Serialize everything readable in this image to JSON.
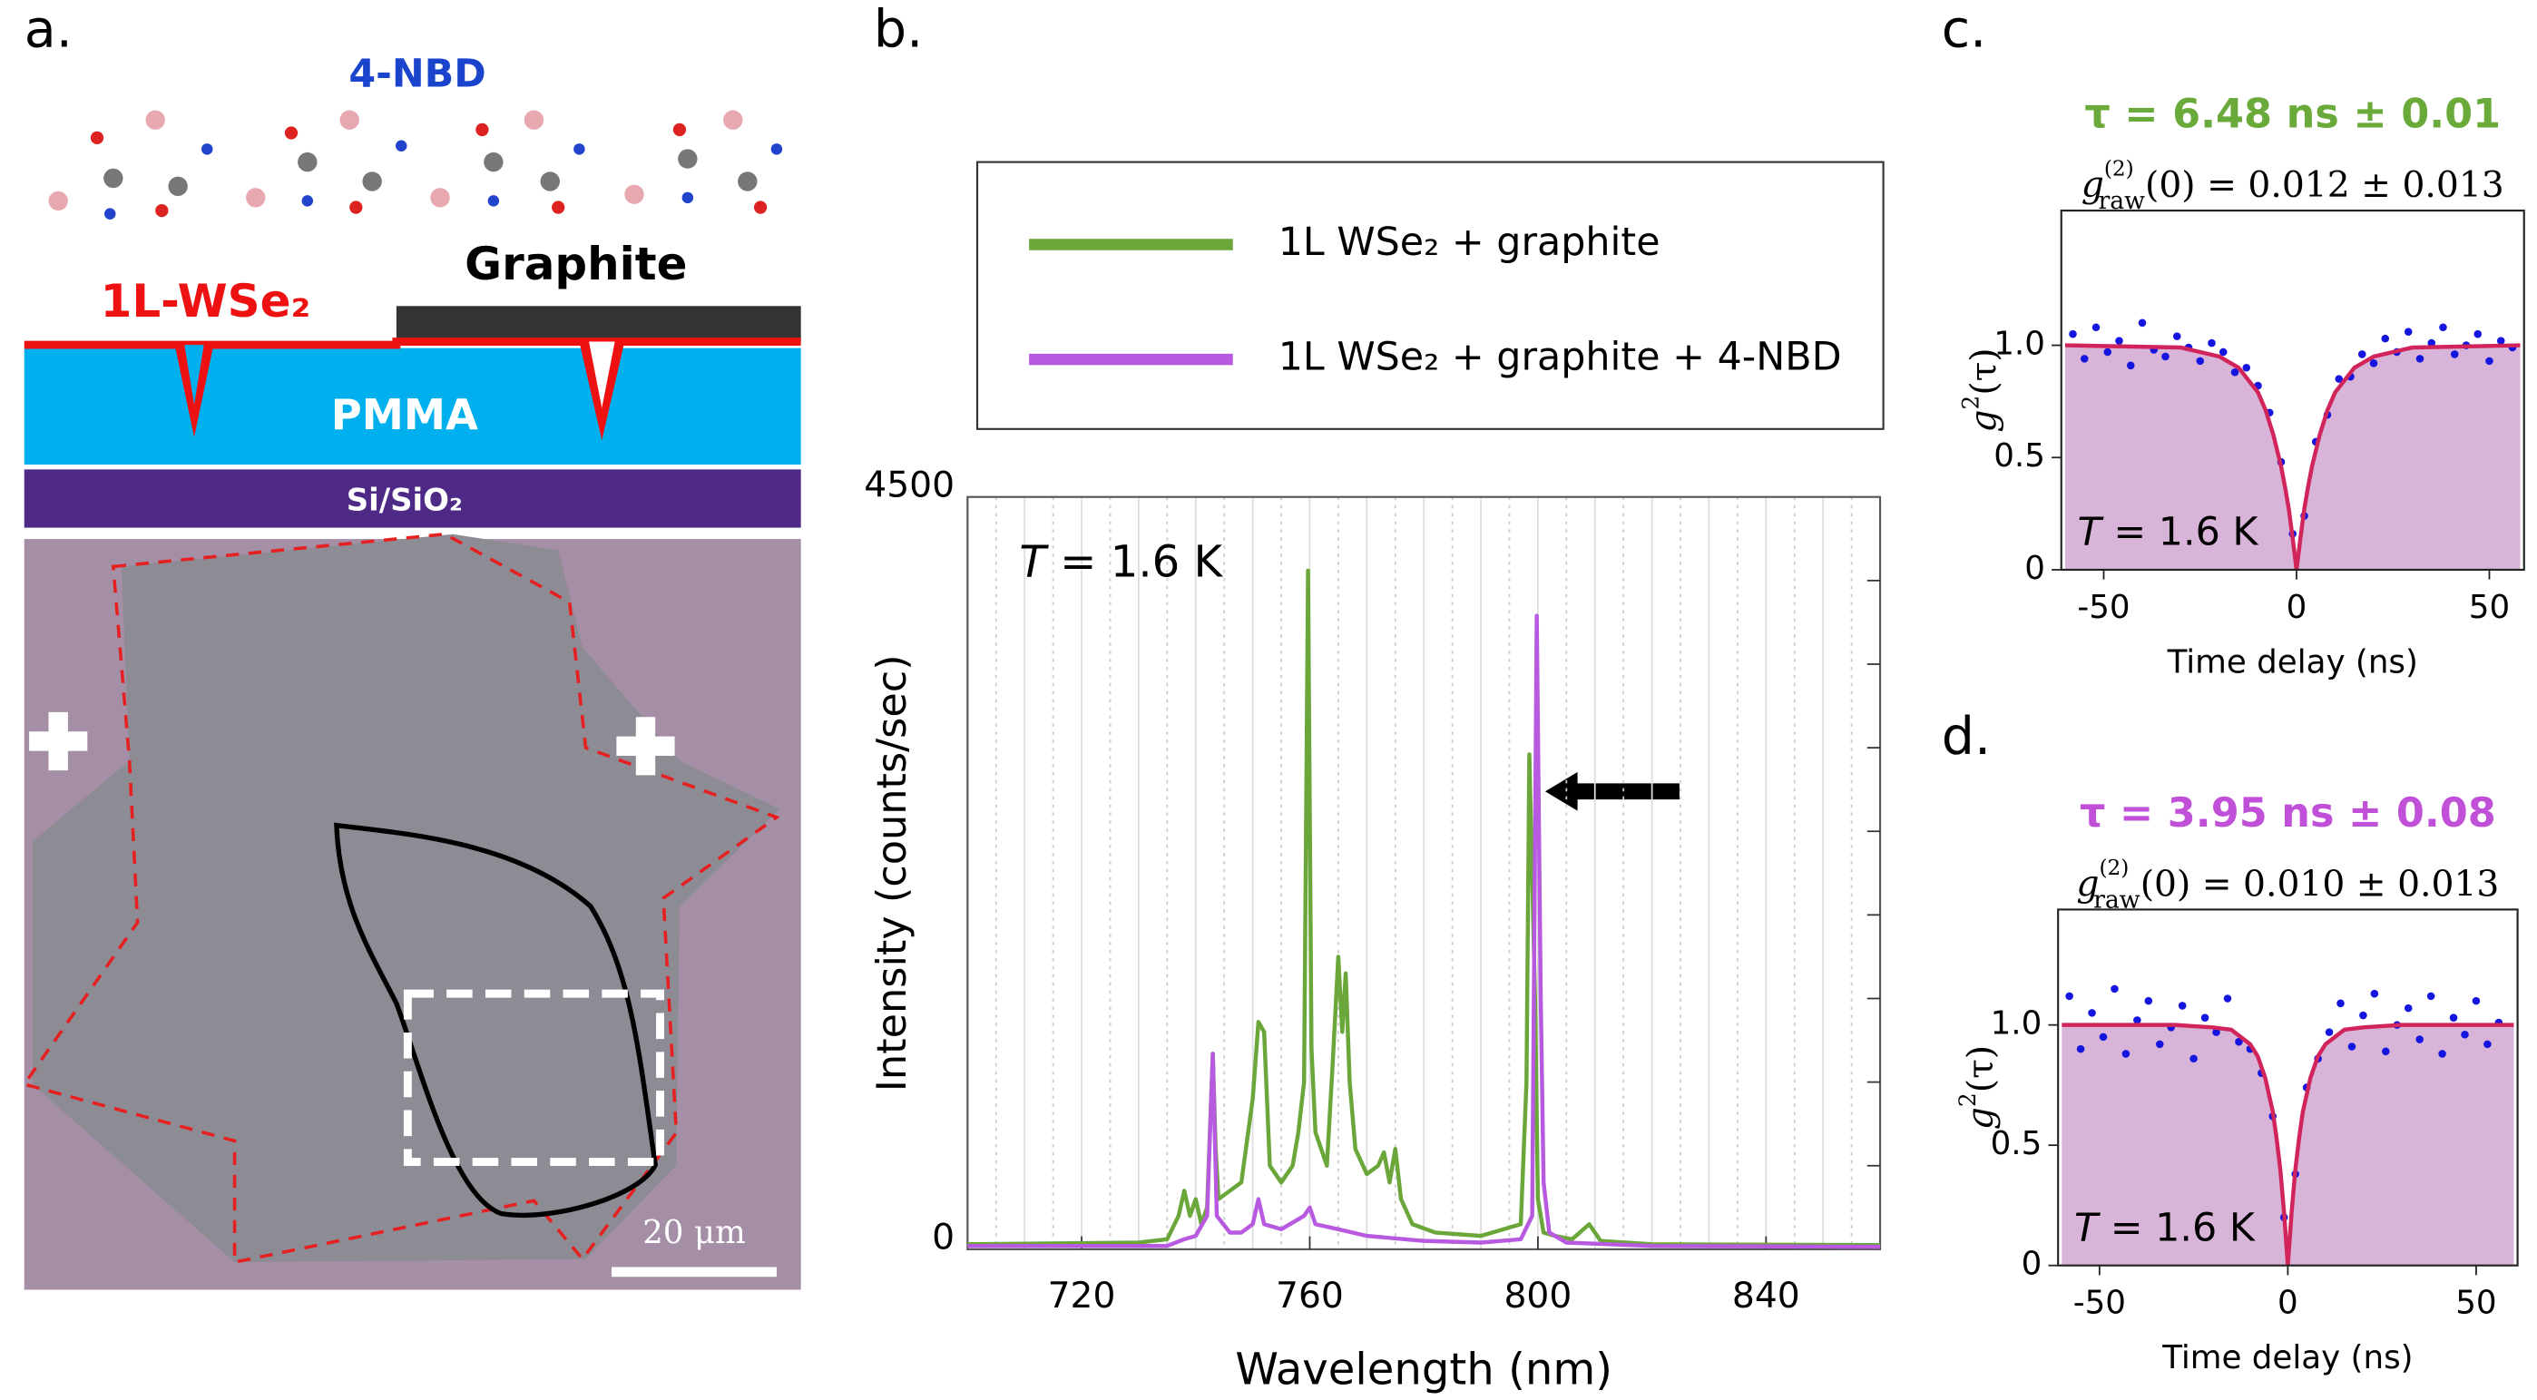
{
  "panel_labels": [
    "a.",
    "b.",
    "c.",
    "d."
  ],
  "diagram": {
    "molecule_label": "4-NBD",
    "graphite": "Graphite",
    "monolayer": "1L-WSe₂",
    "pmma": "PMMA",
    "substrate": "Si/SiO₂",
    "scale_bar": "20 μm"
  },
  "chart_data": [
    {
      "type": "line",
      "xlabel": "Wavelength (nm)",
      "ylabel": "Intensity (counts/sec)",
      "annotation": [
        "T",
        " = 1.6 K"
      ],
      "xlim": [
        700,
        860
      ],
      "xticks": [
        720,
        760,
        800,
        840
      ],
      "ylim": [
        0,
        4500
      ],
      "yticks": [
        0,
        4500
      ],
      "y_minor_ticks": [
        500,
        1000,
        1500,
        2000,
        2500,
        3000,
        3500,
        4000
      ],
      "x_grid_step": 5,
      "legend": "above",
      "series": [
        {
          "name": "1L WSe₂ + graphite",
          "color": "#6aa63a",
          "x": [
            700,
            730,
            735,
            737,
            738,
            739,
            740,
            741,
            742,
            743,
            743.5,
            744,
            746,
            748,
            750,
            751,
            752,
            753,
            755,
            757,
            758,
            759,
            759.7,
            760.3,
            761,
            763,
            764,
            765,
            765.7,
            766.3,
            767,
            768,
            770,
            772,
            773,
            774,
            775,
            776,
            778,
            782,
            790,
            797,
            798,
            798.5,
            799.5,
            800,
            801,
            803,
            806,
            809,
            811,
            820,
            860
          ],
          "values": [
            30,
            40,
            60,
            200,
            350,
            200,
            300,
            150,
            250,
            1170,
            600,
            300,
            350,
            400,
            900,
            1360,
            1300,
            500,
            400,
            500,
            700,
            1000,
            4060,
            1200,
            700,
            500,
            1100,
            1750,
            1300,
            1650,
            1000,
            600,
            450,
            500,
            580,
            400,
            600,
            300,
            150,
            100,
            80,
            150,
            1000,
            2960,
            1500,
            300,
            100,
            80,
            60,
            150,
            50,
            30,
            25
          ]
        },
        {
          "name": "1L WSe₂ + graphite + 4-NBD",
          "color": "#b85ae0",
          "x": [
            700,
            735,
            738,
            740,
            742,
            743,
            743.7,
            746,
            748,
            750,
            751,
            752,
            755,
            759,
            760,
            761,
            765,
            770,
            780,
            790,
            797,
            799,
            799.8,
            800.5,
            801,
            802,
            805,
            820,
            860
          ],
          "values": [
            20,
            20,
            60,
            80,
            200,
            1170,
            200,
            100,
            100,
            150,
            300,
            150,
            120,
            200,
            250,
            150,
            120,
            80,
            50,
            40,
            60,
            200,
            3790,
            1500,
            400,
            100,
            40,
            20,
            15
          ]
        }
      ]
    },
    {
      "type": "scatter",
      "title": "τ = 6.48 ns ± 0.01",
      "title_color": "#6aaa3a",
      "subtitle": [
        "g",
        "(2)",
        "raw",
        "(0) = 0.012  ± 0.013"
      ],
      "xlabel": "Time delay (ns)",
      "ylabel": [
        "g",
        "2",
        "(τ)"
      ],
      "annotation": [
        "T",
        " = 1.6 K"
      ],
      "xlim": [
        -61,
        59
      ],
      "xticks": [
        -50,
        0,
        50
      ],
      "ylim": [
        0,
        1.6
      ],
      "yticks": [
        0,
        0.5,
        {
          "value": 1,
          "label": "1.0"
        }
      ],
      "points": {
        "color": "#1515e0",
        "x": [
          -58,
          -55,
          -52,
          -49,
          -46,
          -43,
          -40,
          -37,
          -34,
          -31,
          -28,
          -25,
          -22,
          -19,
          -16,
          -13,
          -10,
          -7,
          -4,
          -1,
          2,
          5,
          8,
          11,
          14,
          17,
          20,
          23,
          26,
          29,
          32,
          35,
          38,
          41,
          44,
          47,
          50,
          53,
          56
        ],
        "values": [
          1.05,
          0.94,
          1.08,
          0.97,
          1.02,
          0.91,
          1.1,
          0.98,
          0.95,
          1.04,
          0.99,
          0.93,
          1.01,
          0.97,
          0.88,
          0.9,
          0.82,
          0.7,
          0.48,
          0.16,
          0.24,
          0.57,
          0.69,
          0.85,
          0.86,
          0.96,
          0.92,
          1.03,
          0.97,
          1.06,
          0.94,
          1.01,
          1.08,
          0.96,
          1.0,
          1.05,
          0.93,
          1.02,
          0.99
        ]
      },
      "fit": {
        "color": "#d0245a",
        "fill": "#d8b4d8",
        "x": [
          -60,
          -30,
          -20,
          -15,
          -10,
          -8,
          -6,
          -4,
          -3,
          -2,
          -1,
          0,
          1,
          2,
          3,
          4,
          6,
          8,
          10,
          15,
          20,
          30,
          58
        ],
        "values": [
          1.0,
          0.99,
          0.95,
          0.9,
          0.79,
          0.71,
          0.6,
          0.46,
          0.37,
          0.27,
          0.14,
          0,
          0.14,
          0.27,
          0.37,
          0.46,
          0.6,
          0.71,
          0.79,
          0.9,
          0.95,
          0.99,
          1.0
        ]
      }
    },
    {
      "type": "scatter",
      "title": "τ = 3.95 ns ± 0.08",
      "title_color": "#c050d8",
      "subtitle": [
        "g",
        "(2)",
        "raw",
        "(0) = 0.010  ± 0.013"
      ],
      "xlabel": "Time delay (ns)",
      "ylabel": [
        "g",
        "2",
        "(τ)"
      ],
      "annotation": [
        "T",
        " = 1.6 K"
      ],
      "xlim": [
        -61,
        61
      ],
      "xticks": [
        -50,
        0,
        50
      ],
      "ylim": [
        0,
        1.48
      ],
      "yticks": [
        0,
        0.5,
        {
          "value": 1,
          "label": "1.0"
        }
      ],
      "points": {
        "color": "#1515e0",
        "x": [
          -58,
          -55,
          -52,
          -49,
          -46,
          -43,
          -40,
          -37,
          -34,
          -31,
          -28,
          -25,
          -22,
          -19,
          -16,
          -13,
          -10,
          -7,
          -4,
          -1,
          2,
          5,
          8,
          11,
          14,
          17,
          20,
          23,
          26,
          29,
          32,
          35,
          38,
          41,
          44,
          47,
          50,
          53,
          56
        ],
        "values": [
          1.12,
          0.9,
          1.05,
          0.95,
          1.15,
          0.88,
          1.02,
          1.1,
          0.92,
          0.99,
          1.08,
          0.86,
          1.03,
          0.97,
          1.11,
          0.93,
          0.9,
          0.8,
          0.62,
          0.2,
          0.38,
          0.74,
          0.86,
          0.97,
          1.09,
          0.91,
          1.04,
          1.13,
          0.89,
          1.0,
          1.07,
          0.94,
          1.12,
          0.88,
          1.03,
          0.96,
          1.1,
          0.92,
          1.01
        ]
      },
      "fit": {
        "color": "#d0245a",
        "fill": "#d8b4d8",
        "x": [
          -60,
          -30,
          -20,
          -15,
          -10,
          -8,
          -6,
          -4,
          -3,
          -2,
          -1,
          0,
          1,
          2,
          3,
          4,
          6,
          8,
          10,
          15,
          20,
          30,
          60
        ],
        "values": [
          1.0,
          1.0,
          0.99,
          0.98,
          0.92,
          0.87,
          0.78,
          0.64,
          0.53,
          0.4,
          0.22,
          0,
          0.22,
          0.4,
          0.53,
          0.64,
          0.78,
          0.87,
          0.92,
          0.98,
          0.99,
          1.0,
          1.0
        ]
      }
    }
  ]
}
